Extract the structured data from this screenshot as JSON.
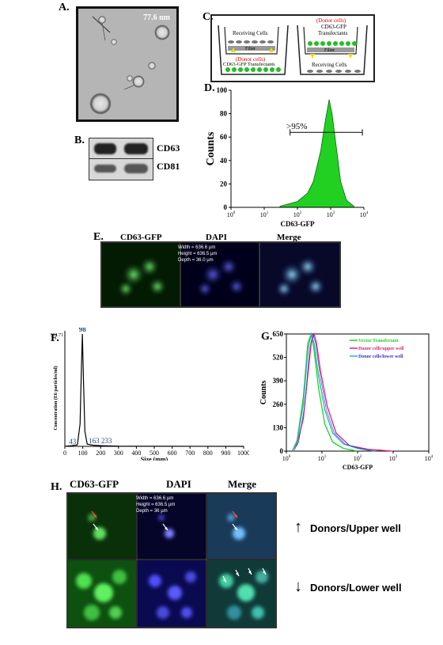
{
  "panelA": {
    "label": "A.",
    "scale": "77.6 nm"
  },
  "panelB": {
    "label": "B.",
    "bands": [
      "CD63",
      "CD81"
    ]
  },
  "panelC": {
    "label": "C.",
    "left": {
      "top": "Receiving Cells",
      "filter": "Filter",
      "donor": "(Donor cells)",
      "bottom": "CD63-GFP Transfectants"
    },
    "right": {
      "donor": "(Donor cells)",
      "top1": "CD63-GFP",
      "top2": "Transfectants",
      "filter": "Filter",
      "bottom": "Receiving Cells"
    }
  },
  "panelD": {
    "label": "D.",
    "annot": ">95%"
  },
  "panelE": {
    "label": "E.",
    "titles": [
      "CD63-GFP",
      "DAPI",
      "Merge"
    ],
    "meta": [
      "Width = 636.6 µm",
      "Height = 636.5 µm",
      "Depth = 36.0 µm"
    ]
  },
  "panelF": {
    "label": "F.",
    "peaks": [
      "98",
      "43",
      "163",
      "233"
    ],
    "ymaxlabel": "302.71"
  },
  "panelG": {
    "label": "G.",
    "legend": [
      "Vector Transfectant",
      "Donor cells/upper well",
      "Donor cells/lower well"
    ]
  },
  "panelH": {
    "label": "H.",
    "titles": [
      "CD63-GFP",
      "DAPI",
      "Merge"
    ],
    "meta": [
      "Width = 636.6 µm",
      "Height = 636.5 µm",
      "Depth = 36 µm"
    ],
    "upper": "Donors/Upper well",
    "lower": "Donors/Lower well"
  },
  "colors": {
    "gfp": "#22d022",
    "pink": "#e0207a",
    "blue": "#3030d0",
    "teal": "#20b8b8"
  },
  "chart_data": [
    {
      "type": "area",
      "id": "D",
      "xlabel": "CD63-GFP",
      "ylabel": "Counts",
      "xscale": "log",
      "xlim": [
        1,
        10000
      ],
      "ylim": [
        0,
        100
      ],
      "xticks": [
        "10^0",
        "10^1",
        "10^2",
        "10^3",
        "10^4"
      ],
      "yticks": [
        0,
        20,
        40,
        60,
        80,
        100
      ],
      "x": [
        30,
        100,
        200,
        300,
        500,
        700,
        900,
        1100,
        1500,
        2000,
        3000,
        5000
      ],
      "y": [
        1,
        5,
        12,
        22,
        48,
        75,
        92,
        80,
        50,
        22,
        6,
        1
      ]
    },
    {
      "type": "line",
      "id": "F",
      "xlabel": "Size (mm)",
      "ylabel": "Concentration (E6 particles/ml)",
      "xlim": [
        0,
        1000
      ],
      "xticks": [
        0,
        100,
        200,
        300,
        400,
        500,
        600,
        700,
        800,
        900,
        1000
      ],
      "x": [
        0,
        40,
        70,
        85,
        92,
        98,
        104,
        112,
        125,
        160,
        200,
        233,
        300,
        1000
      ],
      "y": [
        0,
        2,
        4,
        60,
        200,
        302.71,
        180,
        40,
        6,
        3,
        2,
        1.5,
        0.5,
        0
      ]
    },
    {
      "type": "line",
      "id": "G",
      "xlabel": "CD63-GFP",
      "ylabel": "Counts",
      "xscale": "log",
      "xlim": [
        1,
        10000
      ],
      "ylim": [
        0,
        650
      ],
      "xticks": [
        "10^0",
        "10^1",
        "10^2",
        "10^3",
        "10^4"
      ],
      "yticks": [
        0,
        130,
        260,
        390,
        520,
        650
      ],
      "series": [
        {
          "name": "Vector Transfectant",
          "x": [
            1.5,
            2,
            3,
            4,
            5,
            6,
            8,
            12,
            20,
            40,
            100
          ],
          "y": [
            5,
            60,
            300,
            600,
            650,
            560,
            350,
            150,
            50,
            15,
            0
          ]
        },
        {
          "name": "Donor cells/upper well",
          "x": [
            1.5,
            2,
            3,
            4,
            5,
            6,
            7,
            9,
            14,
            25,
            60,
            200,
            1000
          ],
          "y": [
            5,
            40,
            180,
            420,
            600,
            650,
            600,
            450,
            250,
            100,
            30,
            10,
            0
          ]
        },
        {
          "name": "Donor cells/lower well",
          "x": [
            1.5,
            2,
            3,
            4,
            5,
            6,
            8,
            12,
            20,
            40,
            100,
            300
          ],
          "y": [
            5,
            50,
            260,
            560,
            650,
            600,
            420,
            230,
            100,
            40,
            15,
            0
          ]
        }
      ]
    }
  ]
}
